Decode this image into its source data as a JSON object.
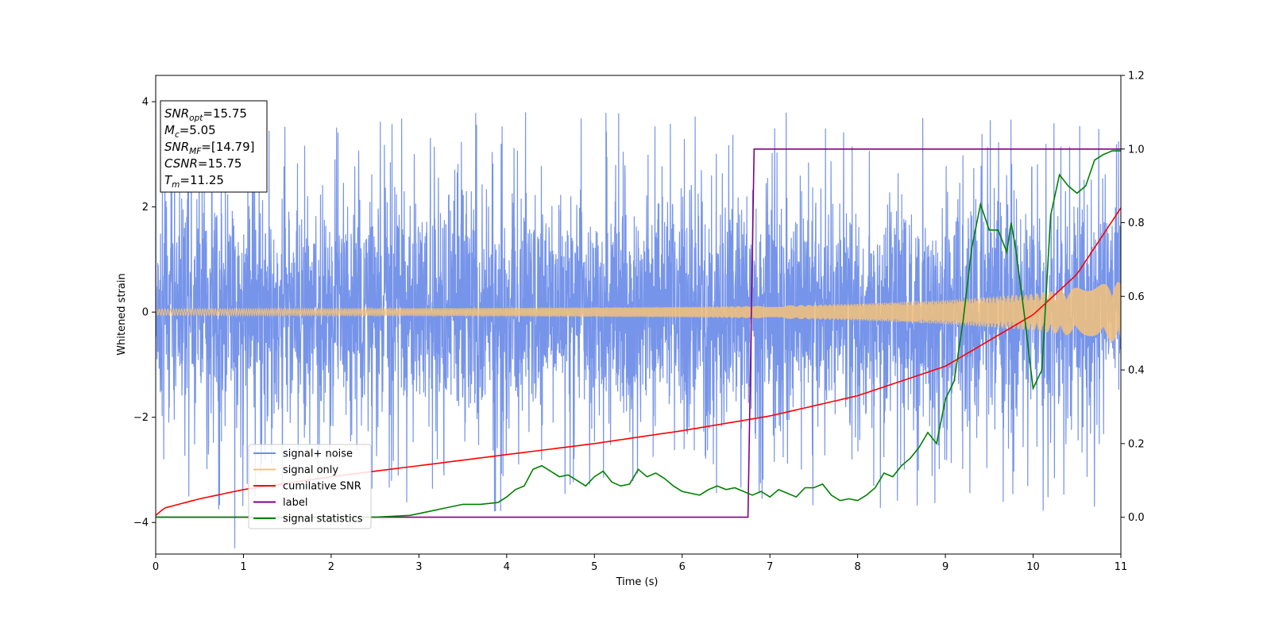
{
  "chart_data": {
    "type": "line",
    "xlabel": "Time (s)",
    "ylabel": "Whitened strain",
    "xlim": [
      0,
      11
    ],
    "ylim_left": [
      -4.6,
      4.5
    ],
    "ylim_right": [
      -0.1,
      1.2
    ],
    "xticks": [
      0,
      1,
      2,
      3,
      4,
      5,
      6,
      7,
      8,
      9,
      10,
      11
    ],
    "yticks_left": [
      -4,
      -2,
      0,
      2,
      4
    ],
    "yticks_right": [
      0.0,
      0.2,
      0.4,
      0.6,
      0.8,
      1.0,
      1.2
    ],
    "series": [
      {
        "name": "signal+ noise",
        "color": "#6f8ee8",
        "axis": "left",
        "description": "whitened noisy strain, dense oscillation roughly between -2.5 and 2.5 with spikes to about +/-4"
      },
      {
        "name": "signal only",
        "color": "#f6c27a",
        "axis": "left",
        "envelope_x": [
          0,
          2,
          4,
          6,
          7,
          8,
          9,
          10,
          11
        ],
        "envelope_amp": [
          0.06,
          0.07,
          0.08,
          0.1,
          0.12,
          0.16,
          0.23,
          0.35,
          0.58
        ]
      },
      {
        "name": "cumilative SNR",
        "color": "#ff0000",
        "axis": "right",
        "x": [
          0,
          0.1,
          0.5,
          1,
          2,
          3,
          4,
          5,
          6,
          7,
          8,
          9,
          10,
          10.5,
          11
        ],
        "y": [
          0.005,
          0.025,
          0.05,
          0.075,
          0.11,
          0.14,
          0.17,
          0.2,
          0.235,
          0.275,
          0.33,
          0.41,
          0.55,
          0.66,
          0.84
        ]
      },
      {
        "name": "label",
        "color": "#800080",
        "axis": "right",
        "x": [
          0,
          6.75,
          6.82,
          11
        ],
        "y": [
          0,
          0,
          1,
          1
        ]
      },
      {
        "name": "signal statistics",
        "color": "#008000",
        "axis": "right",
        "x": [
          0,
          2.5,
          2.9,
          3.1,
          3.3,
          3.5,
          3.7,
          3.9,
          4.0,
          4.1,
          4.2,
          4.3,
          4.4,
          4.5,
          4.6,
          4.7,
          4.8,
          4.9,
          5.0,
          5.1,
          5.2,
          5.3,
          5.4,
          5.5,
          5.6,
          5.7,
          5.8,
          5.9,
          6.0,
          6.1,
          6.2,
          6.3,
          6.4,
          6.5,
          6.6,
          6.7,
          6.8,
          6.9,
          7.0,
          7.1,
          7.2,
          7.3,
          7.4,
          7.5,
          7.6,
          7.7,
          7.8,
          7.9,
          8.0,
          8.1,
          8.2,
          8.3,
          8.4,
          8.5,
          8.6,
          8.7,
          8.8,
          8.9,
          9.0,
          9.1,
          9.2,
          9.3,
          9.4,
          9.5,
          9.6,
          9.7,
          9.75,
          9.8,
          9.9,
          10.0,
          10.1,
          10.2,
          10.3,
          10.4,
          10.5,
          10.6,
          10.7,
          10.8,
          10.9,
          11.0
        ],
        "y": [
          0,
          0,
          0.005,
          0.015,
          0.025,
          0.035,
          0.035,
          0.04,
          0.055,
          0.075,
          0.085,
          0.13,
          0.14,
          0.125,
          0.11,
          0.115,
          0.1,
          0.085,
          0.11,
          0.125,
          0.095,
          0.085,
          0.09,
          0.13,
          0.11,
          0.12,
          0.105,
          0.085,
          0.07,
          0.065,
          0.06,
          0.075,
          0.085,
          0.075,
          0.08,
          0.07,
          0.06,
          0.07,
          0.055,
          0.075,
          0.065,
          0.055,
          0.08,
          0.08,
          0.09,
          0.06,
          0.045,
          0.05,
          0.045,
          0.06,
          0.08,
          0.12,
          0.11,
          0.14,
          0.16,
          0.19,
          0.23,
          0.2,
          0.32,
          0.37,
          0.53,
          0.73,
          0.85,
          0.78,
          0.78,
          0.72,
          0.8,
          0.73,
          0.55,
          0.35,
          0.4,
          0.82,
          0.93,
          0.9,
          0.88,
          0.9,
          0.97,
          0.985,
          0.995,
          0.995
        ]
      }
    ],
    "legend": {
      "position": "lower-left",
      "entries": [
        "signal+ noise",
        "signal only",
        "cumilative SNR",
        "label",
        "signal statistics"
      ]
    },
    "annotation": {
      "position": "top-left",
      "lines": [
        {
          "base": "SNR",
          "sub": "opt",
          "rest": "=15.75"
        },
        {
          "base": "M",
          "sub": "c",
          "rest": "=5.05"
        },
        {
          "base": "SNR",
          "sub": "MF",
          "rest": "=[14.79]"
        },
        {
          "base": "CSNR",
          "sub": "",
          "rest": "=15.75"
        },
        {
          "base": "T",
          "sub": "m",
          "rest": "=11.25"
        }
      ]
    }
  }
}
